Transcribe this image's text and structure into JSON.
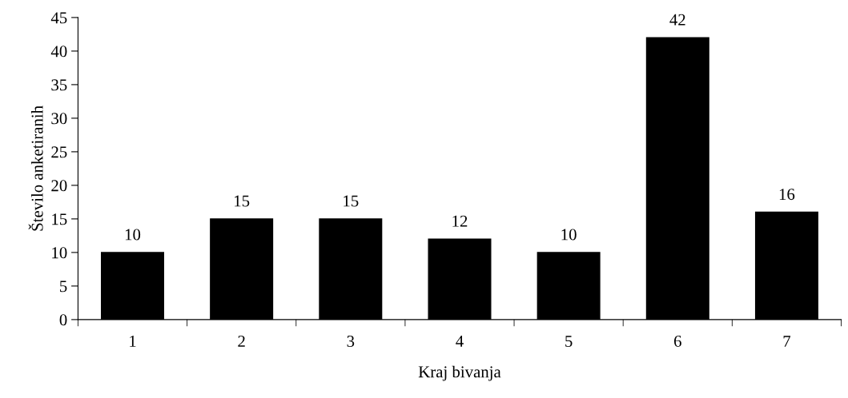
{
  "chart_data": {
    "type": "bar",
    "xlabel": "Kraj bivanja",
    "ylabel": "Število anketiranih",
    "categories": [
      "1",
      "2",
      "3",
      "4",
      "5",
      "6",
      "7"
    ],
    "values": [
      10,
      15,
      15,
      12,
      10,
      42,
      16
    ],
    "color": "#000000",
    "ylim": [
      0,
      45
    ],
    "yticks": [
      0,
      5,
      10,
      15,
      20,
      25,
      30,
      35,
      40,
      45
    ],
    "data_labels": true,
    "grid": false,
    "legend": false
  }
}
